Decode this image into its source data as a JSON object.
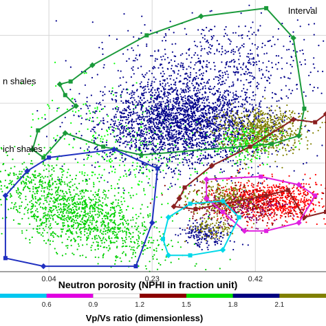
{
  "chart_data": {
    "type": "scatter",
    "xlabel": "Neutron porosity (NPHI in fraction unit)",
    "xlim": [
      -0.05,
      0.55
    ],
    "ylim": [
      0,
      1
    ],
    "x_ticks": [
      {
        "value": 0.04,
        "label": "0.04"
      },
      {
        "value": 0.23,
        "label": "0.23"
      },
      {
        "value": 0.42,
        "label": "0.42"
      }
    ],
    "grid": true,
    "annotations": [
      {
        "text": "Interval",
        "x": 0.48,
        "y": 0.95
      },
      {
        "text": "n shales",
        "x": -0.045,
        "y": 0.69
      },
      {
        "text": "ich shales",
        "x": -0.045,
        "y": 0.44
      }
    ],
    "colorbar": {
      "title": "Vp/Vs ratio (dimensionless)",
      "ticks": [
        "0.6",
        "0.9",
        "1.2",
        "1.5",
        "1.8",
        "2.1"
      ],
      "colors": [
        "#00c8f0",
        "#e000e0",
        "#ffffff",
        "#8b0000",
        "#00e000",
        "#000080",
        "#808000"
      ]
    },
    "clusters": [
      {
        "color": "#00d000",
        "cx": 0.09,
        "cy": 0.22,
        "sx": 0.05,
        "sy": 0.11,
        "n": 1500,
        "rot": 0.7
      },
      {
        "color": "#00ff00",
        "cx": 0.18,
        "cy": 0.45,
        "sx": 0.07,
        "sy": 0.12,
        "n": 350,
        "rot": 0.4
      },
      {
        "color": "#00008b",
        "cx": 0.29,
        "cy": 0.55,
        "sx": 0.08,
        "sy": 0.08,
        "n": 2800,
        "rot": 0.35
      },
      {
        "color": "#00008b",
        "cx": 0.36,
        "cy": 0.78,
        "sx": 0.09,
        "sy": 0.08,
        "n": 500,
        "rot": 0.1
      },
      {
        "color": "#808000",
        "cx": 0.43,
        "cy": 0.52,
        "sx": 0.04,
        "sy": 0.04,
        "n": 700,
        "rot": 0.0
      },
      {
        "color": "#ff0000",
        "cx": 0.45,
        "cy": 0.26,
        "sx": 0.05,
        "sy": 0.035,
        "n": 900,
        "rot": 0.0
      },
      {
        "color": "#8b0000",
        "cx": 0.39,
        "cy": 0.25,
        "sx": 0.05,
        "sy": 0.035,
        "n": 300,
        "rot": 0.0
      },
      {
        "color": "#808000",
        "cx": 0.36,
        "cy": 0.27,
        "sx": 0.03,
        "sy": 0.03,
        "n": 250,
        "rot": 0.0
      },
      {
        "color": "#00008b",
        "cx": 0.33,
        "cy": 0.14,
        "sx": 0.025,
        "sy": 0.025,
        "n": 180,
        "rot": 0.3
      },
      {
        "color": "#808000",
        "cx": 0.34,
        "cy": 0.16,
        "sx": 0.02,
        "sy": 0.02,
        "n": 100,
        "rot": 0.3
      },
      {
        "color": "#00ff00",
        "cx": 0.41,
        "cy": 0.47,
        "sx": 0.03,
        "sy": 0.03,
        "n": 200,
        "rot": 0.0
      },
      {
        "color": "#800080",
        "cx": 0.4,
        "cy": 0.23,
        "sx": 0.04,
        "sy": 0.03,
        "n": 120,
        "rot": 0.0
      }
    ],
    "polygons": [
      {
        "color": "#1a9a3a",
        "points": [
          [
            0.01,
            0.45
          ],
          [
            0.02,
            0.52
          ],
          [
            0.09,
            0.61
          ],
          [
            0.07,
            0.65
          ],
          [
            0.06,
            0.69
          ],
          [
            0.08,
            0.7
          ],
          [
            0.12,
            0.76
          ],
          [
            0.22,
            0.87
          ],
          [
            0.32,
            0.94
          ],
          [
            0.44,
            0.97
          ],
          [
            0.49,
            0.86
          ],
          [
            0.51,
            0.6
          ],
          [
            0.5,
            0.5
          ],
          [
            0.45,
            0.47
          ],
          [
            0.21,
            0.43
          ],
          [
            0.14,
            0.46
          ],
          [
            0.07,
            0.51
          ],
          [
            0.03,
            0.42
          ]
        ]
      },
      {
        "color": "#2030c0",
        "points": [
          [
            -0.04,
            0.28
          ],
          [
            -0.04,
            0.05
          ],
          [
            0.03,
            0.02
          ],
          [
            0.2,
            0.02
          ],
          [
            0.23,
            0.18
          ],
          [
            0.24,
            0.38
          ],
          [
            0.16,
            0.45
          ],
          [
            0.04,
            0.42
          ],
          [
            0.0,
            0.37
          ]
        ]
      },
      {
        "color": "#8b2020",
        "points": [
          [
            0.28,
            0.27
          ],
          [
            0.29,
            0.31
          ],
          [
            0.34,
            0.39
          ],
          [
            0.41,
            0.46
          ],
          [
            0.49,
            0.56
          ],
          [
            0.53,
            0.55
          ],
          [
            0.55,
            0.58
          ],
          [
            0.55,
            0.22
          ],
          [
            0.51,
            0.2
          ],
          [
            0.48,
            0.3
          ],
          [
            0.44,
            0.28
          ],
          [
            0.31,
            0.23
          ],
          [
            0.27,
            0.24
          ]
        ]
      },
      {
        "color": "#e020e0",
        "points": [
          [
            0.33,
            0.34
          ],
          [
            0.43,
            0.35
          ],
          [
            0.5,
            0.32
          ],
          [
            0.53,
            0.28
          ],
          [
            0.5,
            0.18
          ],
          [
            0.44,
            0.15
          ],
          [
            0.4,
            0.15
          ],
          [
            0.36,
            0.22
          ],
          [
            0.33,
            0.27
          ]
        ]
      },
      {
        "color": "#00d8e8",
        "points": [
          [
            0.26,
            0.2
          ],
          [
            0.3,
            0.25
          ],
          [
            0.36,
            0.26
          ],
          [
            0.39,
            0.2
          ],
          [
            0.36,
            0.08
          ],
          [
            0.3,
            0.06
          ],
          [
            0.26,
            0.06
          ],
          [
            0.25,
            0.12
          ]
        ]
      }
    ]
  }
}
